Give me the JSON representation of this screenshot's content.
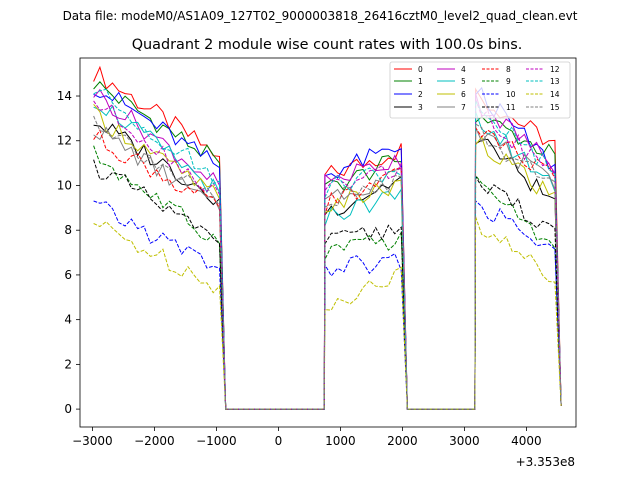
{
  "figure": {
    "suptitle": "Data file: modeM0/AS1A09_127T02_9000003818_26416cztM0_level2_quad_clean.evt"
  },
  "chart_data": {
    "type": "line",
    "title": "Quadrant 2 module wise count rates with 100.0s bins.",
    "xlabel": "",
    "ylabel": "",
    "offset_label": "+3.353e8",
    "xlim": [
      -3200,
      4800
    ],
    "ylim": [
      -0.8,
      15.7
    ],
    "xticks": [
      -3000,
      -2000,
      -1000,
      0,
      1000,
      2000,
      3000,
      4000
    ],
    "xtick_labels": [
      "−3000",
      "−2000",
      "−1000",
      "0",
      "1000",
      "2000",
      "3000",
      "4000"
    ],
    "yticks": [
      0,
      2,
      4,
      6,
      8,
      10,
      12,
      14
    ],
    "grid": false,
    "legend": {
      "placement": "top-right",
      "ncol": 4
    },
    "gaps": [
      [
        -950,
        750
      ],
      [
        1980,
        3180
      ]
    ],
    "segments": [
      {
        "x0": -2980,
        "x1": -950,
        "n": 21
      },
      {
        "x0": 750,
        "x1": 1980,
        "n": 13
      },
      {
        "x0": 3180,
        "x1": 4460,
        "n": 14
      }
    ],
    "series": [
      {
        "name": "0",
        "color": "#ff0000",
        "dash": "solid",
        "a": [
          15.1,
          11.3
        ],
        "b": [
          10.4,
          11.6
        ],
        "c": [
          14.1,
          11.8
        ]
      },
      {
        "name": "1",
        "color": "#008000",
        "dash": "solid",
        "a": [
          14.6,
          11.0
        ],
        "b": [
          9.8,
          11.2
        ],
        "c": [
          13.2,
          11.3
        ]
      },
      {
        "name": "2",
        "color": "#0000ff",
        "dash": "solid",
        "a": [
          14.5,
          10.8
        ],
        "b": [
          10.5,
          11.7
        ],
        "c": [
          14.3,
          10.8
        ]
      },
      {
        "name": "3",
        "color": "#000000",
        "dash": "solid",
        "a": [
          12.9,
          9.4
        ],
        "b": [
          8.8,
          10.3
        ],
        "c": [
          12.3,
          9.2
        ]
      },
      {
        "name": "4",
        "color": "#bf00bf",
        "dash": "solid",
        "a": [
          14.2,
          10.0
        ],
        "b": [
          10.2,
          11.2
        ],
        "c": [
          13.8,
          10.9
        ]
      },
      {
        "name": "5",
        "color": "#00bfbf",
        "dash": "solid",
        "a": [
          13.9,
          9.7
        ],
        "b": [
          8.6,
          9.6
        ],
        "c": [
          13.0,
          10.0
        ]
      },
      {
        "name": "6",
        "color": "#bfbf00",
        "dash": "solid",
        "a": [
          13.2,
          9.4
        ],
        "b": [
          9.0,
          10.0
        ],
        "c": [
          12.2,
          9.3
        ]
      },
      {
        "name": "7",
        "color": "#808080",
        "dash": "solid",
        "a": [
          12.6,
          8.9
        ],
        "b": [
          9.5,
          10.5
        ],
        "c": [
          12.6,
          9.9
        ]
      },
      {
        "name": "8",
        "color": "#ff0000",
        "dash": "dashed",
        "a": [
          12.2,
          9.0
        ],
        "b": [
          9.1,
          10.5
        ],
        "c": [
          12.7,
          10.3
        ]
      },
      {
        "name": "9",
        "color": "#008000",
        "dash": "dashed",
        "a": [
          11.4,
          7.4
        ],
        "b": [
          7.0,
          7.6
        ],
        "c": [
          10.3,
          7.1
        ]
      },
      {
        "name": "10",
        "color": "#0000ff",
        "dash": "dashed",
        "a": [
          9.1,
          6.3
        ],
        "b": [
          6.3,
          6.6
        ],
        "c": [
          9.3,
          6.9
        ]
      },
      {
        "name": "11",
        "color": "#000000",
        "dash": "dashed",
        "a": [
          10.9,
          7.4
        ],
        "b": [
          7.4,
          8.1
        ],
        "c": [
          10.1,
          8.0
        ]
      },
      {
        "name": "12",
        "color": "#bf00bf",
        "dash": "dashed",
        "a": [
          13.8,
          9.6
        ],
        "b": [
          9.8,
          10.8
        ],
        "c": [
          13.5,
          10.4
        ]
      },
      {
        "name": "13",
        "color": "#00bfbf",
        "dash": "dashed",
        "a": [
          14.3,
          10.2
        ],
        "b": [
          9.9,
          10.8
        ],
        "c": [
          13.8,
          10.6
        ]
      },
      {
        "name": "14",
        "color": "#bfbf00",
        "dash": "dashed",
        "a": [
          8.3,
          5.5
        ],
        "b": [
          4.7,
          6.0
        ],
        "c": [
          8.3,
          5.8
        ]
      },
      {
        "name": "15",
        "color": "#808080",
        "dash": "dashed",
        "a": [
          13.0,
          9.1
        ],
        "b": [
          9.2,
          10.3
        ],
        "c": [
          12.5,
          9.8
        ]
      }
    ]
  }
}
